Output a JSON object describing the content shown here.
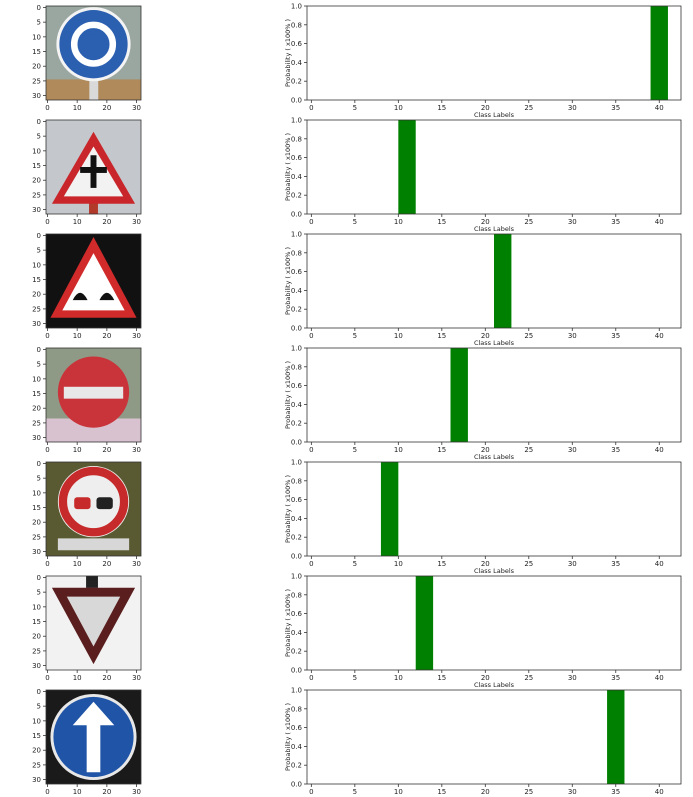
{
  "colors": {
    "bar": "#008000",
    "axis": "#333333",
    "background": "#ffffff"
  },
  "image_axes": {
    "ticks_x": [
      0,
      10,
      20,
      30
    ],
    "ticks_y": [
      0,
      5,
      10,
      15,
      20,
      25,
      30
    ],
    "range": [
      0,
      32
    ]
  },
  "images": [
    {
      "sign": "roundabout-mandatory",
      "colors": {
        "main": "#2b5fb0",
        "accent": "#ffffff",
        "bg": "#9aa6a0"
      }
    },
    {
      "sign": "warning-triangle-intersection",
      "colors": {
        "main": "#c8262b",
        "accent": "#f2f2f2",
        "bg": "#c4c8cc"
      }
    },
    {
      "sign": "warning-triangle-bumpy-road",
      "colors": {
        "main": "#d02a2a",
        "accent": "#ffffff",
        "bg": "#111111"
      }
    },
    {
      "sign": "no-entry",
      "colors": {
        "main": "#c9343a",
        "accent": "#e8e8e8",
        "bg": "#8f9a86"
      }
    },
    {
      "sign": "no-passing",
      "colors": {
        "main": "#c62a2a",
        "accent": "#eeeeee",
        "bg": "#5a5a32"
      }
    },
    {
      "sign": "yield",
      "colors": {
        "main": "#5a1e1e",
        "accent": "#d8d8d8",
        "bg": "#f2f2f2"
      }
    },
    {
      "sign": "ahead-only",
      "colors": {
        "main": "#1f54a6",
        "accent": "#ffffff",
        "bg": "#1a1a1a"
      }
    }
  ],
  "chart_data": [
    {
      "type": "bar",
      "xlabel": "Class Labels",
      "ylabel": "Probability ( x100% )",
      "xlim": [
        -0.5,
        42.5
      ],
      "ylim": [
        0,
        1
      ],
      "xticks": [
        0,
        5,
        10,
        15,
        20,
        25,
        30,
        35,
        40
      ],
      "yticks": [
        0.0,
        0.2,
        0.4,
        0.6,
        0.8,
        1.0
      ],
      "x": [
        40
      ],
      "values": [
        1.0
      ]
    },
    {
      "type": "bar",
      "xlabel": "Class Labels",
      "ylabel": "Probability ( x100% )",
      "xlim": [
        -0.5,
        42.5
      ],
      "ylim": [
        0,
        1
      ],
      "xticks": [
        0,
        5,
        10,
        15,
        20,
        25,
        30,
        35,
        40
      ],
      "yticks": [
        0.0,
        0.2,
        0.4,
        0.6,
        0.8,
        1.0
      ],
      "x": [
        11
      ],
      "values": [
        1.0
      ]
    },
    {
      "type": "bar",
      "xlabel": "Class Labels",
      "ylabel": "Probability ( x100% )",
      "xlim": [
        -0.5,
        42.5
      ],
      "ylim": [
        0,
        1
      ],
      "xticks": [
        0,
        5,
        10,
        15,
        20,
        25,
        30,
        35,
        40
      ],
      "yticks": [
        0.0,
        0.2,
        0.4,
        0.6,
        0.8,
        1.0
      ],
      "x": [
        22
      ],
      "values": [
        1.0
      ]
    },
    {
      "type": "bar",
      "xlabel": "Class Labels",
      "ylabel": "Probability ( x100% )",
      "xlim": [
        -0.5,
        42.5
      ],
      "ylim": [
        0,
        1
      ],
      "xticks": [
        0,
        5,
        10,
        15,
        20,
        25,
        30,
        35,
        40
      ],
      "yticks": [
        0.0,
        0.2,
        0.4,
        0.6,
        0.8,
        1.0
      ],
      "x": [
        17
      ],
      "values": [
        1.0
      ]
    },
    {
      "type": "bar",
      "xlabel": "Class Labels",
      "ylabel": "Probability ( x100% )",
      "xlim": [
        -0.5,
        42.5
      ],
      "ylim": [
        0,
        1
      ],
      "xticks": [
        0,
        5,
        10,
        15,
        20,
        25,
        30,
        35,
        40
      ],
      "yticks": [
        0.0,
        0.2,
        0.4,
        0.6,
        0.8,
        1.0
      ],
      "x": [
        9
      ],
      "values": [
        1.0
      ]
    },
    {
      "type": "bar",
      "xlabel": "Class Labels",
      "ylabel": "Probability ( x100% )",
      "xlim": [
        -0.5,
        42.5
      ],
      "ylim": [
        0,
        1
      ],
      "xticks": [
        0,
        5,
        10,
        15,
        20,
        25,
        30,
        35,
        40
      ],
      "yticks": [
        0.0,
        0.2,
        0.4,
        0.6,
        0.8,
        1.0
      ],
      "x": [
        13
      ],
      "values": [
        1.0
      ]
    },
    {
      "type": "bar",
      "xlabel": "",
      "ylabel": "Probability ( x100% )",
      "xlim": [
        -0.5,
        42.5
      ],
      "ylim": [
        0,
        1
      ],
      "xticks": [
        0,
        5,
        10,
        15,
        20,
        25,
        30,
        35,
        40
      ],
      "yticks": [
        0.0,
        0.2,
        0.4,
        0.6,
        0.8,
        1.0
      ],
      "x": [
        35
      ],
      "values": [
        1.0
      ]
    }
  ]
}
